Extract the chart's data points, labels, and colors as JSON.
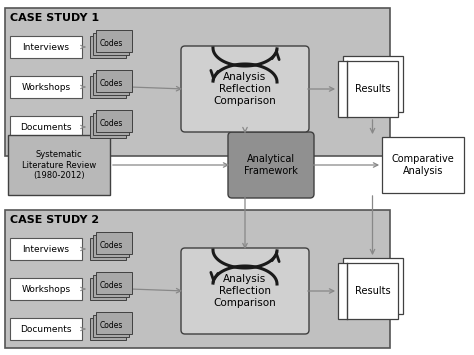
{
  "white": "#ffffff",
  "case_bg": "#c0c0c0",
  "arc_bg": "#d0d0d0",
  "af_bg": "#909090",
  "lit_bg": "#b8b8b8",
  "codes_bg": "#a8a8a8",
  "case1_label": "CASE STUDY 1",
  "case2_label": "CASE STUDY 2",
  "inputs": [
    "Interviews",
    "Workshops",
    "Documents"
  ],
  "codes_label": "Codes",
  "arc_text": "Analysis\nReflection\nComparison",
  "results_label": "Results",
  "lit_review_label": "Systematic\nLiterature Review\n(1980-2012)",
  "analytical_fw_label": "Analytical\nFramework",
  "comparative_label": "Comparative\nAnalysis",
  "arrow_gray": "#888888",
  "arrow_dark": "#1a1a1a",
  "edge_color": "#404040",
  "case_edge": "#555555"
}
